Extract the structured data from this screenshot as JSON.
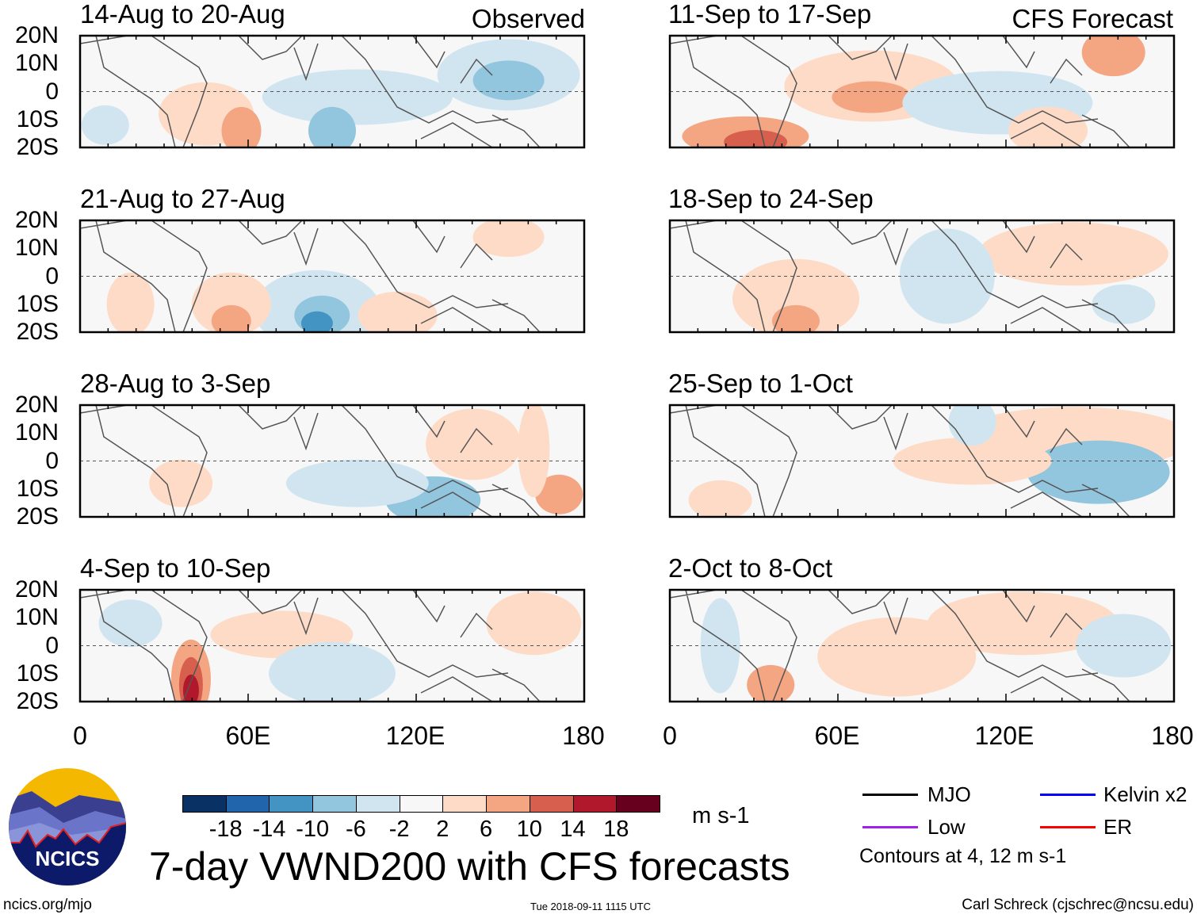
{
  "header": {
    "observed_label": "Observed",
    "forecast_label": "CFS Forecast"
  },
  "panels": {
    "observed": [
      {
        "title": "14-Aug to 20-Aug"
      },
      {
        "title": "21-Aug to 27-Aug"
      },
      {
        "title": "28-Aug to 3-Sep"
      },
      {
        "title": "4-Sep to 10-Sep"
      }
    ],
    "forecast": [
      {
        "title": "11-Sep to 17-Sep"
      },
      {
        "title": "18-Sep to 24-Sep"
      },
      {
        "title": "25-Sep to 1-Oct"
      },
      {
        "title": "2-Oct to 8-Oct"
      }
    ]
  },
  "lat_labels": [
    "20N",
    "10N",
    "0",
    "10S",
    "20S"
  ],
  "lon_labels": [
    "0",
    "60E",
    "120E",
    "180"
  ],
  "colorbar": {
    "colors": [
      "#0a3163",
      "#2166ac",
      "#4393c3",
      "#92c5de",
      "#d1e5f0",
      "#f7f7f7",
      "#fddbc7",
      "#f4a582",
      "#d6604d",
      "#b2182b",
      "#67001f"
    ],
    "ticks": [
      "-18",
      "-14",
      "-10",
      "-6",
      "-2",
      "2",
      "6",
      "10",
      "14",
      "18"
    ],
    "units": "m s-1"
  },
  "legend": {
    "items": [
      {
        "label": "MJO",
        "color": "#000000"
      },
      {
        "label": "Kelvin x2",
        "color": "#0000ff"
      },
      {
        "label": "Low",
        "color": "#a020f0"
      },
      {
        "label": "ER",
        "color": "#ff0000"
      }
    ],
    "contours_note": "Contours at 4, 12 m s-1"
  },
  "footer": {
    "title": "7-day VWND200 with CFS forecasts",
    "logo_text": "NCICS",
    "url": "ncics.org/mjo",
    "timestamp": "Tue 2018-09-11 1115 UTC",
    "credit": "Carl Schreck (cjschrec@ncsu.edu)"
  }
}
